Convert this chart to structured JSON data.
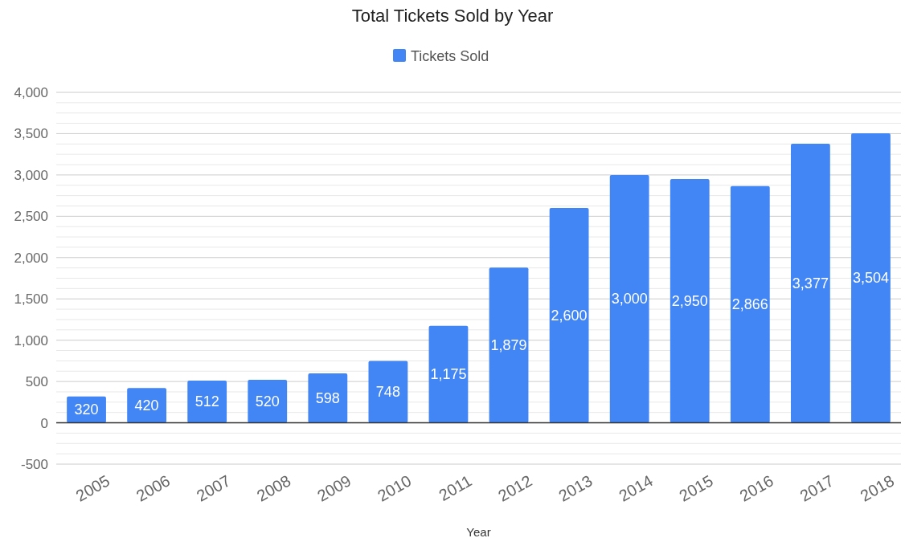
{
  "chart_data": {
    "type": "bar",
    "title": "Total Tickets Sold by Year",
    "xlabel": "Year",
    "categories": [
      "2005",
      "2006",
      "2007",
      "2008",
      "2009",
      "2010",
      "2011",
      "2012",
      "2013",
      "2014",
      "2015",
      "2016",
      "2017",
      "2018"
    ],
    "series": [
      {
        "name": "Tickets Sold",
        "color": "#4285f4",
        "values": [
          320,
          420,
          512,
          520,
          598,
          748,
          1175,
          1879,
          2600,
          3000,
          2950,
          2866,
          3377,
          3504
        ],
        "value_labels": [
          "320",
          "420",
          "512",
          "520",
          "598",
          "748",
          "1,175",
          "1,879",
          "2,600",
          "3,000",
          "2,950",
          "2,866",
          "3,377",
          "3,504"
        ]
      }
    ],
    "ylim": [
      -500,
      4000
    ],
    "yticks": [
      {
        "value": -500,
        "label": "-500"
      },
      {
        "value": -375,
        "label": null
      },
      {
        "value": -250,
        "label": null
      },
      {
        "value": -125,
        "label": null
      },
      {
        "value": 0,
        "label": "0"
      },
      {
        "value": 125,
        "label": null
      },
      {
        "value": 250,
        "label": null
      },
      {
        "value": 375,
        "label": null
      },
      {
        "value": 500,
        "label": "500"
      },
      {
        "value": 625,
        "label": null
      },
      {
        "value": 750,
        "label": null
      },
      {
        "value": 875,
        "label": null
      },
      {
        "value": 1000,
        "label": "1,000"
      },
      {
        "value": 1125,
        "label": null
      },
      {
        "value": 1250,
        "label": null
      },
      {
        "value": 1375,
        "label": null
      },
      {
        "value": 1500,
        "label": "1,500"
      },
      {
        "value": 1625,
        "label": null
      },
      {
        "value": 1750,
        "label": null
      },
      {
        "value": 1875,
        "label": null
      },
      {
        "value": 2000,
        "label": "2,000"
      },
      {
        "value": 2125,
        "label": null
      },
      {
        "value": 2250,
        "label": null
      },
      {
        "value": 2375,
        "label": null
      },
      {
        "value": 2500,
        "label": "2,500"
      },
      {
        "value": 2625,
        "label": null
      },
      {
        "value": 2750,
        "label": null
      },
      {
        "value": 2875,
        "label": null
      },
      {
        "value": 3000,
        "label": "3,000"
      },
      {
        "value": 3125,
        "label": null
      },
      {
        "value": 3250,
        "label": null
      },
      {
        "value": 3375,
        "label": null
      },
      {
        "value": 3500,
        "label": "3,500"
      },
      {
        "value": 3625,
        "label": null
      },
      {
        "value": 3750,
        "label": null
      },
      {
        "value": 3875,
        "label": null
      },
      {
        "value": 4000,
        "label": "4,000"
      }
    ],
    "grid": true,
    "legend": "top"
  }
}
